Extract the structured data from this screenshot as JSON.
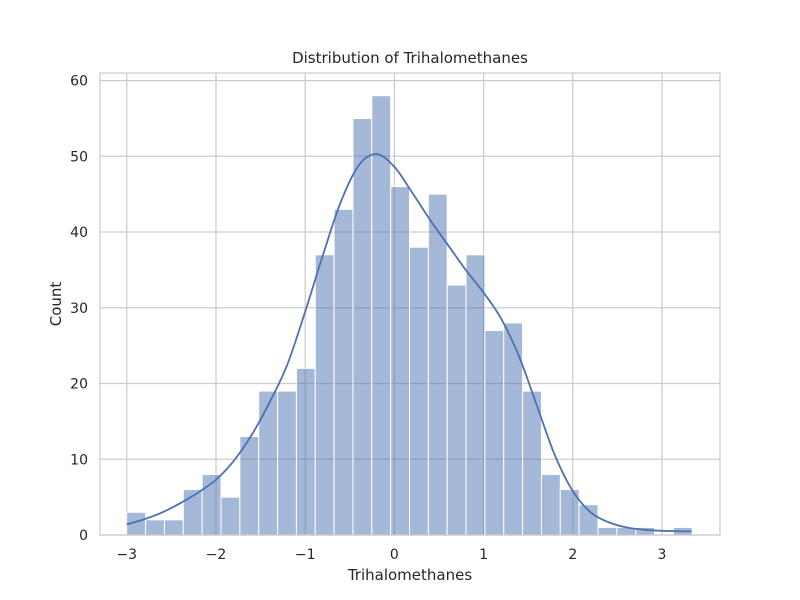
{
  "chart_data": {
    "type": "bar",
    "subtype": "histogram_with_kde",
    "title": "Distribution of Trihalomethanes",
    "xlabel": "Trihalomethanes",
    "ylabel": "Count",
    "xlim": [
      -3.3,
      3.65
    ],
    "ylim": [
      0,
      61
    ],
    "xticks": [
      -3,
      -2,
      -1,
      0,
      1,
      2,
      3
    ],
    "xtick_labels": [
      "−3",
      "−2",
      "−1",
      "0",
      "1",
      "2",
      "3"
    ],
    "yticks": [
      0,
      10,
      20,
      30,
      40,
      50,
      60
    ],
    "ytick_labels": [
      "0",
      "10",
      "20",
      "30",
      "40",
      "50",
      "60"
    ],
    "grid": true,
    "bar_color": "#4c72b0",
    "bins": {
      "start": -3.0,
      "width": 0.2113,
      "counts": [
        3,
        2,
        2,
        6,
        8,
        5,
        13,
        19,
        19,
        22,
        37,
        43,
        55,
        58,
        46,
        38,
        45,
        33,
        37,
        27,
        28,
        19,
        8,
        6,
        4,
        1,
        1,
        1,
        0,
        1
      ]
    },
    "kde": {
      "x": [
        -3.0,
        -2.8,
        -2.6,
        -2.4,
        -2.2,
        -2.0,
        -1.8,
        -1.6,
        -1.4,
        -1.2,
        -1.0,
        -0.8,
        -0.6,
        -0.4,
        -0.2,
        0.0,
        0.2,
        0.4,
        0.6,
        0.8,
        1.0,
        1.2,
        1.4,
        1.6,
        1.8,
        2.0,
        2.2,
        2.4,
        2.6,
        2.8,
        3.0,
        3.2,
        3.33
      ],
      "y": [
        1.4,
        2.1,
        3.0,
        4.2,
        5.6,
        7.3,
        9.8,
        13.2,
        17.5,
        22.5,
        29.5,
        37.0,
        44.0,
        48.8,
        50.3,
        48.6,
        45.2,
        41.6,
        38.3,
        35.0,
        32.0,
        28.5,
        23.5,
        17.0,
        10.5,
        5.8,
        3.0,
        1.7,
        1.0,
        0.7,
        0.55,
        0.5,
        0.48
      ]
    }
  }
}
